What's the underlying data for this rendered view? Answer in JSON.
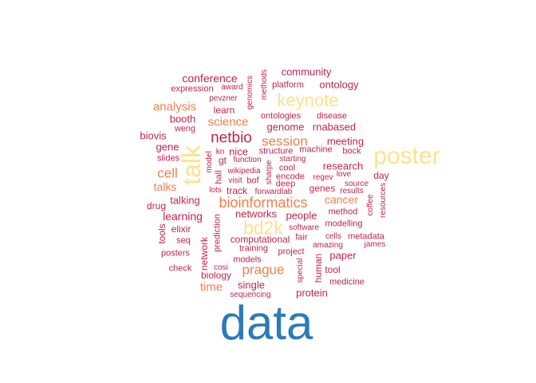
{
  "palette": {
    "dark_red": "#c0244f",
    "red": "#d7191c",
    "orange": "#f47e4a",
    "yellow": "#fde28a",
    "blue": "#2c7bb6"
  },
  "words": [
    {
      "text": "data",
      "color": "blue"
    },
    {
      "text": "talk",
      "color": "yellow"
    },
    {
      "text": "poster",
      "color": "yellow"
    },
    {
      "text": "bd2k",
      "color": "yellow"
    },
    {
      "text": "keynote",
      "color": "yellow"
    },
    {
      "text": "netbio",
      "color": "dark_red"
    },
    {
      "text": "bioinformatics",
      "color": "orange"
    },
    {
      "text": "session",
      "color": "orange"
    },
    {
      "text": "prague",
      "color": "orange"
    },
    {
      "text": "cell",
      "color": "orange"
    },
    {
      "text": "analysis",
      "color": "orange"
    },
    {
      "text": "science",
      "color": "orange"
    },
    {
      "text": "talks",
      "color": "orange"
    },
    {
      "text": "cancer",
      "color": "orange"
    },
    {
      "text": "time",
      "color": "orange"
    },
    {
      "text": "conference",
      "color": "dark_red"
    },
    {
      "text": "community",
      "color": "dark_red"
    },
    {
      "text": "ontology",
      "color": "dark_red"
    },
    {
      "text": "expression",
      "color": "dark_red"
    },
    {
      "text": "award",
      "color": "dark_red"
    },
    {
      "text": "platform",
      "color": "dark_red"
    },
    {
      "text": "methods",
      "color": "dark_red"
    },
    {
      "text": "genomics",
      "color": "dark_red"
    },
    {
      "text": "pevzner",
      "color": "dark_red"
    },
    {
      "text": "learn",
      "color": "dark_red"
    },
    {
      "text": "meeting",
      "color": "dark_red"
    },
    {
      "text": "booth",
      "color": "dark_red"
    },
    {
      "text": "ontologies",
      "color": "dark_red"
    },
    {
      "text": "disease",
      "color": "dark_red"
    },
    {
      "text": "weng",
      "color": "dark_red"
    },
    {
      "text": "genome",
      "color": "dark_red"
    },
    {
      "text": "rnabased",
      "color": "dark_red"
    },
    {
      "text": "biovis",
      "color": "dark_red"
    },
    {
      "text": "gene",
      "color": "dark_red"
    },
    {
      "text": "nice",
      "color": "dark_red"
    },
    {
      "text": "structure",
      "color": "dark_red"
    },
    {
      "text": "machine",
      "color": "dark_red"
    },
    {
      "text": "bock",
      "color": "dark_red"
    },
    {
      "text": "kn",
      "color": "dark_red"
    },
    {
      "text": "slides",
      "color": "dark_red"
    },
    {
      "text": "gt",
      "color": "dark_red"
    },
    {
      "text": "function",
      "color": "dark_red"
    },
    {
      "text": "starting",
      "color": "dark_red"
    },
    {
      "text": "research",
      "color": "dark_red"
    },
    {
      "text": "model",
      "color": "dark_red"
    },
    {
      "text": "cool",
      "color": "dark_red"
    },
    {
      "text": "wikipedia",
      "color": "dark_red"
    },
    {
      "text": "sharpe",
      "color": "dark_red"
    },
    {
      "text": "regev",
      "color": "dark_red"
    },
    {
      "text": "love",
      "color": "dark_red"
    },
    {
      "text": "day",
      "color": "dark_red"
    },
    {
      "text": "hall",
      "color": "dark_red"
    },
    {
      "text": "encode",
      "color": "dark_red"
    },
    {
      "text": "visit",
      "color": "dark_red"
    },
    {
      "text": "bof",
      "color": "dark_red"
    },
    {
      "text": "deep",
      "color": "dark_red"
    },
    {
      "text": "source",
      "color": "dark_red"
    },
    {
      "text": "lots",
      "color": "dark_red"
    },
    {
      "text": "track",
      "color": "dark_red"
    },
    {
      "text": "forwardlab",
      "color": "dark_red"
    },
    {
      "text": "genes",
      "color": "dark_red"
    },
    {
      "text": "results",
      "color": "dark_red"
    },
    {
      "text": "resources",
      "color": "dark_red"
    },
    {
      "text": "talking",
      "color": "dark_red"
    },
    {
      "text": "drug",
      "color": "dark_red"
    },
    {
      "text": "coffee",
      "color": "dark_red"
    },
    {
      "text": "learning",
      "color": "dark_red"
    },
    {
      "text": "networks",
      "color": "dark_red"
    },
    {
      "text": "people",
      "color": "dark_red"
    },
    {
      "text": "method",
      "color": "dark_red"
    },
    {
      "text": "elixir",
      "color": "dark_red"
    },
    {
      "text": "prediction",
      "color": "dark_red"
    },
    {
      "text": "modelling",
      "color": "dark_red"
    },
    {
      "text": "tools",
      "color": "dark_red"
    },
    {
      "text": "software",
      "color": "dark_red"
    },
    {
      "text": "seq",
      "color": "dark_red"
    },
    {
      "text": "computational",
      "color": "dark_red"
    },
    {
      "text": "fair",
      "color": "dark_red"
    },
    {
      "text": "cells",
      "color": "dark_red"
    },
    {
      "text": "metadata",
      "color": "dark_red"
    },
    {
      "text": "amazing",
      "color": "dark_red"
    },
    {
      "text": "james",
      "color": "dark_red"
    },
    {
      "text": "posters",
      "color": "dark_red"
    },
    {
      "text": "network",
      "color": "dark_red"
    },
    {
      "text": "training",
      "color": "dark_red"
    },
    {
      "text": "project",
      "color": "dark_red"
    },
    {
      "text": "paper",
      "color": "dark_red"
    },
    {
      "text": "models",
      "color": "dark_red"
    },
    {
      "text": "check",
      "color": "dark_red"
    },
    {
      "text": "cosi",
      "color": "dark_red"
    },
    {
      "text": "human",
      "color": "dark_red"
    },
    {
      "text": "tool",
      "color": "dark_red"
    },
    {
      "text": "biology",
      "color": "dark_red"
    },
    {
      "text": "special",
      "color": "dark_red"
    },
    {
      "text": "medicine",
      "color": "dark_red"
    },
    {
      "text": "single",
      "color": "dark_red"
    },
    {
      "text": "sequencing",
      "color": "dark_red"
    },
    {
      "text": "protein",
      "color": "dark_red"
    }
  ]
}
